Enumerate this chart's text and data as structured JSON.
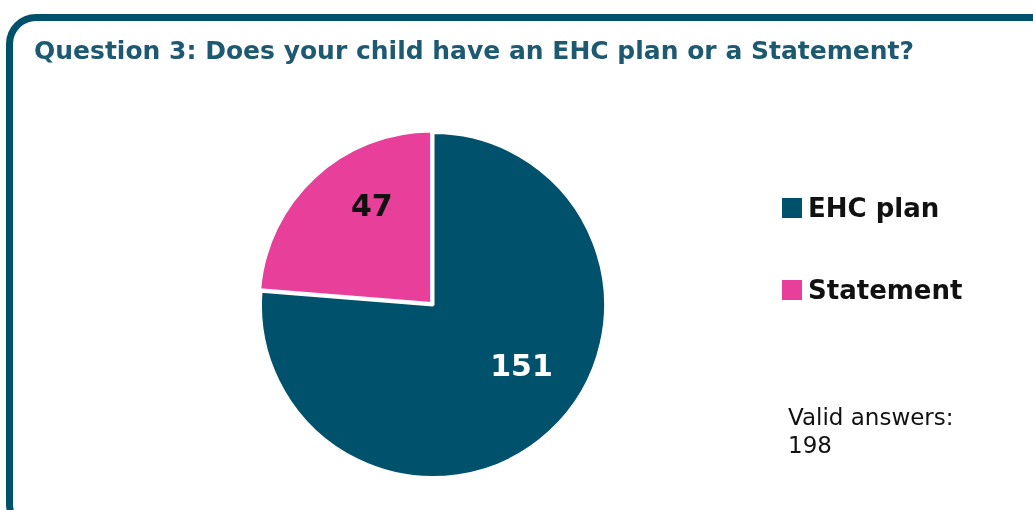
{
  "chart_data": {
    "type": "pie",
    "title": "Question 3: Does your child have an EHC plan or a Statement?",
    "categories": [
      "EHC plan",
      "Statement"
    ],
    "values": [
      151,
      47
    ],
    "colors": [
      "#00516b",
      "#e8409a"
    ],
    "data_labels": true,
    "legend": "right",
    "annotations": [
      "Valid answers: 198"
    ]
  }
}
